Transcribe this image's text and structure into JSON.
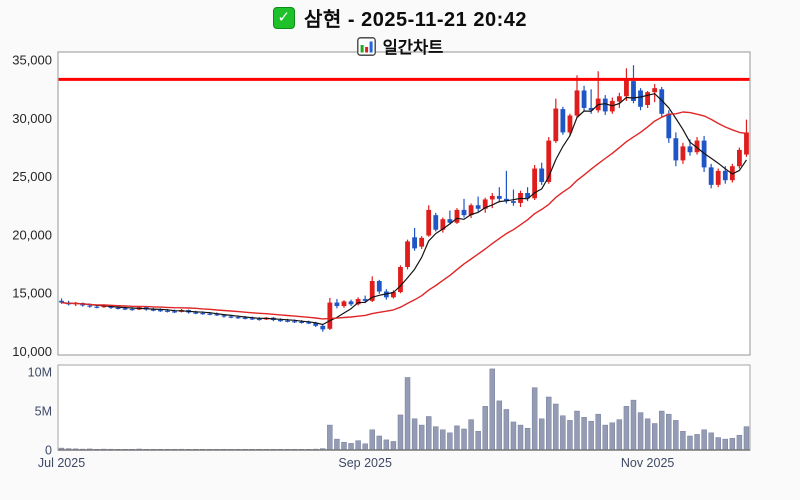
{
  "title": {
    "line1": "삼현 - 2025-11-21 20:42",
    "stock_name": "삼현",
    "datetime": "2025-11-21 20:42",
    "subtitle": "일간차트"
  },
  "icons": {
    "checkbox_glyph": "✓",
    "checkbox_bg": "#1fc12b",
    "checkbox_border": "#0f8a18",
    "chart_icon_bars": [
      "#22a822",
      "#dd2222",
      "#2266dd"
    ]
  },
  "colors": {
    "figure_background": "#fafafa",
    "plot_background": "#ffffff",
    "plot_border": "#a6a6a6",
    "axis_line": "#777777"
  },
  "chart_data": {
    "type": "candlestick_with_volume",
    "title": "삼현 - 2025-11-21 20:42",
    "subtitle": "일간차트",
    "candle_colors": {
      "up": "#df1d1d",
      "down": "#1f55c4"
    },
    "volume_bar": {
      "fill": "#949bb4",
      "edge": "#6a7190"
    },
    "alert_line": {
      "value": 33350,
      "color": "#ff0000",
      "stroke_width": 3
    },
    "moving_averages": [
      {
        "name": "MA-short",
        "window": 5,
        "color": "#141414",
        "stroke_width": 1.2
      },
      {
        "name": "MA-long",
        "window": 20,
        "color": "#e02626",
        "stroke_width": 1.4
      }
    ],
    "price_axis": {
      "min": 9700,
      "max": 35700,
      "tick_values": [
        35000,
        30000,
        25000,
        20000,
        15000,
        10000
      ],
      "tick_labels": [
        "35,000",
        "30,000",
        "25,000",
        "20,000",
        "15,000",
        "10,000"
      ]
    },
    "volume_axis": {
      "min": 0,
      "max": 10900000,
      "tick_values": [
        10000000,
        5000000,
        0
      ],
      "tick_labels": [
        "10M",
        "5M",
        "0"
      ]
    },
    "x_axis": {
      "ticks": [
        {
          "index": 0,
          "label": "Jul 2025"
        },
        {
          "index": 43,
          "label": "Sep 2025"
        },
        {
          "index": 83,
          "label": "Nov 2025"
        }
      ]
    },
    "ohlcv_columns": [
      "date",
      "open",
      "high",
      "low",
      "close",
      "volume"
    ],
    "ohlcv": [
      [
        "2025-07-01",
        14350,
        14550,
        14100,
        14200,
        250000
      ],
      [
        "2025-07-02",
        14200,
        14350,
        13950,
        14050,
        180000
      ],
      [
        "2025-07-03",
        14050,
        14250,
        13900,
        14150,
        150000
      ],
      [
        "2025-07-04",
        14150,
        14200,
        13850,
        13950,
        120000
      ],
      [
        "2025-07-07",
        13950,
        14100,
        13750,
        13850,
        140000
      ],
      [
        "2025-07-08",
        13850,
        14000,
        13700,
        13800,
        100000
      ],
      [
        "2025-07-09",
        13800,
        14050,
        13750,
        13950,
        120000
      ],
      [
        "2025-07-10",
        13950,
        14000,
        13650,
        13750,
        110000
      ],
      [
        "2025-07-11",
        13750,
        13900,
        13600,
        13700,
        90000
      ],
      [
        "2025-07-14",
        13700,
        13850,
        13550,
        13650,
        100000
      ],
      [
        "2025-07-15",
        13650,
        13800,
        13500,
        13600,
        80000
      ],
      [
        "2025-07-16",
        13600,
        13900,
        13550,
        13800,
        130000
      ],
      [
        "2025-07-17",
        13800,
        13850,
        13500,
        13600,
        90000
      ],
      [
        "2025-07-18",
        13600,
        13750,
        13450,
        13550,
        80000
      ],
      [
        "2025-07-21",
        13550,
        13700,
        13400,
        13500,
        70000
      ],
      [
        "2025-07-22",
        13500,
        13650,
        13350,
        13450,
        80000
      ],
      [
        "2025-07-23",
        13450,
        13600,
        13300,
        13400,
        90000
      ],
      [
        "2025-07-24",
        13400,
        13650,
        13350,
        13550,
        110000
      ],
      [
        "2025-07-25",
        13550,
        13600,
        13250,
        13350,
        80000
      ],
      [
        "2025-07-28",
        13350,
        13500,
        13200,
        13300,
        70000
      ],
      [
        "2025-07-29",
        13300,
        13450,
        13150,
        13250,
        60000
      ],
      [
        "2025-07-30",
        13250,
        13400,
        13100,
        13200,
        70000
      ],
      [
        "2025-07-31",
        13200,
        13350,
        13050,
        13100,
        80000
      ],
      [
        "2025-08-01",
        13100,
        13200,
        12900,
        13000,
        90000
      ],
      [
        "2025-08-04",
        13000,
        13150,
        12850,
        12950,
        70000
      ],
      [
        "2025-08-05",
        12950,
        13100,
        12800,
        12900,
        60000
      ],
      [
        "2025-08-06",
        12900,
        13050,
        12750,
        12850,
        70000
      ],
      [
        "2025-08-07",
        12850,
        13000,
        12700,
        12800,
        60000
      ],
      [
        "2025-08-08",
        12800,
        12950,
        12650,
        12750,
        70000
      ],
      [
        "2025-08-11",
        12750,
        12950,
        12700,
        12900,
        100000
      ],
      [
        "2025-08-12",
        12900,
        12950,
        12600,
        12700,
        80000
      ],
      [
        "2025-08-13",
        12700,
        12850,
        12550,
        12650,
        60000
      ],
      [
        "2025-08-14",
        12650,
        12800,
        12500,
        12600,
        70000
      ],
      [
        "2025-08-18",
        12600,
        12750,
        12450,
        12550,
        60000
      ],
      [
        "2025-08-19",
        12550,
        12700,
        12400,
        12500,
        50000
      ],
      [
        "2025-08-20",
        12500,
        12650,
        12350,
        12450,
        60000
      ],
      [
        "2025-08-21",
        12450,
        12550,
        12100,
        12200,
        120000
      ],
      [
        "2025-08-22",
        12200,
        12300,
        11700,
        11900,
        180000
      ],
      [
        "2025-08-25",
        11950,
        14600,
        11850,
        14200,
        3200000
      ],
      [
        "2025-08-26",
        14200,
        14500,
        13700,
        13900,
        1400000
      ],
      [
        "2025-08-27",
        13900,
        14400,
        13750,
        14300,
        1000000
      ],
      [
        "2025-08-28",
        14300,
        14450,
        13900,
        14050,
        850000
      ],
      [
        "2025-08-29",
        14050,
        14650,
        13950,
        14500,
        1200000
      ],
      [
        "2025-09-01",
        14500,
        14800,
        14150,
        14350,
        800000
      ],
      [
        "2025-09-02",
        14350,
        16450,
        14250,
        16050,
        2600000
      ],
      [
        "2025-09-03",
        16050,
        16150,
        14950,
        15150,
        1800000
      ],
      [
        "2025-09-04",
        15150,
        15350,
        14450,
        14650,
        1300000
      ],
      [
        "2025-09-05",
        14650,
        15250,
        14550,
        15100,
        1100000
      ],
      [
        "2025-09-08",
        15100,
        17400,
        15000,
        17250,
        4500000
      ],
      [
        "2025-09-09",
        17250,
        19600,
        17050,
        19450,
        9300000
      ],
      [
        "2025-09-10",
        19800,
        20600,
        18650,
        18850,
        4000000
      ],
      [
        "2025-09-11",
        19000,
        19900,
        18800,
        19750,
        3200000
      ],
      [
        "2025-09-12",
        19950,
        22550,
        19850,
        22150,
        4300000
      ],
      [
        "2025-09-15",
        21700,
        21900,
        20300,
        20450,
        3000000
      ],
      [
        "2025-09-16",
        20450,
        21500,
        20200,
        21350,
        2600000
      ],
      [
        "2025-09-17",
        21350,
        22100,
        20900,
        21050,
        2200000
      ],
      [
        "2025-09-18",
        21050,
        22300,
        20950,
        22150,
        3100000
      ],
      [
        "2025-09-19",
        22150,
        23100,
        21500,
        21700,
        2700000
      ],
      [
        "2025-09-22",
        21700,
        22700,
        21450,
        22550,
        3900000
      ],
      [
        "2025-09-23",
        22550,
        23300,
        22000,
        22250,
        2400000
      ],
      [
        "2025-09-24",
        22250,
        23200,
        21900,
        23050,
        5600000
      ],
      [
        "2025-09-25",
        23050,
        23600,
        22300,
        23350,
        10400000
      ],
      [
        "2025-09-26",
        23350,
        24100,
        22800,
        23100,
        6300000
      ],
      [
        "2025-09-29",
        23100,
        25500,
        22700,
        22900,
        5200000
      ],
      [
        "2025-09-30",
        22900,
        23900,
        22500,
        22750,
        3600000
      ],
      [
        "2025-10-01",
        22750,
        23800,
        22400,
        23600,
        3200000
      ],
      [
        "2025-10-02",
        23600,
        24100,
        22900,
        23150,
        2800000
      ],
      [
        "2025-10-10",
        23150,
        26000,
        23000,
        25700,
        8000000
      ],
      [
        "2025-10-13",
        25700,
        26200,
        24300,
        24550,
        4000000
      ],
      [
        "2025-10-14",
        24550,
        28400,
        24400,
        28100,
        6800000
      ],
      [
        "2025-10-15",
        28050,
        31700,
        27900,
        30850,
        5900000
      ],
      [
        "2025-10-16",
        30800,
        31000,
        28600,
        28800,
        4400000
      ],
      [
        "2025-10-17",
        28800,
        30400,
        28500,
        30250,
        3800000
      ],
      [
        "2025-10-20",
        30250,
        33700,
        30100,
        32400,
        5000000
      ],
      [
        "2025-10-21",
        32400,
        32800,
        30600,
        30900,
        4200000
      ],
      [
        "2025-10-22",
        30900,
        32500,
        30400,
        30700,
        3700000
      ],
      [
        "2025-10-23",
        30700,
        34050,
        30500,
        31700,
        4600000
      ],
      [
        "2025-10-24",
        31700,
        32000,
        30300,
        30600,
        3200000
      ],
      [
        "2025-10-27",
        30600,
        31800,
        30400,
        31500,
        3500000
      ],
      [
        "2025-10-28",
        31450,
        32200,
        30900,
        31900,
        3900000
      ],
      [
        "2025-10-29",
        31900,
        34300,
        31500,
        33280,
        5600000
      ],
      [
        "2025-10-30",
        33200,
        34570,
        31300,
        31500,
        6400000
      ],
      [
        "2025-10-31",
        32400,
        32600,
        30700,
        31000,
        4800000
      ],
      [
        "2025-11-03",
        31150,
        32350,
        30900,
        32250,
        4000000
      ],
      [
        "2025-11-04",
        32250,
        32950,
        31400,
        32600,
        3400000
      ],
      [
        "2025-11-05",
        32500,
        32700,
        30100,
        30400,
        5000000
      ],
      [
        "2025-11-06",
        30400,
        30700,
        27900,
        28300,
        4600000
      ],
      [
        "2025-11-07",
        28300,
        28800,
        25900,
        26400,
        3800000
      ],
      [
        "2025-11-10",
        26400,
        27900,
        26100,
        27600,
        2400000
      ],
      [
        "2025-11-11",
        27600,
        28200,
        26800,
        27100,
        1800000
      ],
      [
        "2025-11-12",
        27100,
        28400,
        26900,
        28100,
        2000000
      ],
      [
        "2025-11-13",
        28100,
        28500,
        25400,
        25800,
        2600000
      ],
      [
        "2025-11-14",
        25800,
        26100,
        24000,
        24300,
        2200000
      ],
      [
        "2025-11-17",
        24300,
        25700,
        24100,
        25500,
        1600000
      ],
      [
        "2025-11-18",
        25500,
        25900,
        24400,
        24700,
        1400000
      ],
      [
        "2025-11-19",
        24700,
        26100,
        24500,
        25900,
        1500000
      ],
      [
        "2025-11-20",
        25900,
        27500,
        25700,
        27300,
        1900000
      ],
      [
        "2025-11-21",
        26900,
        29900,
        26700,
        28800,
        3000000
      ]
    ]
  }
}
